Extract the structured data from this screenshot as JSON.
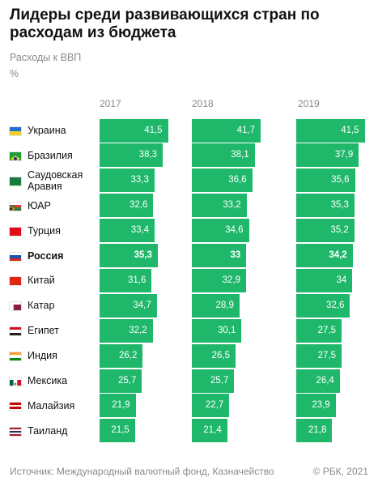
{
  "title": "Лидеры среди развивающихся стран по расходам из бюджета",
  "subtitle": "Расходы к ВВП",
  "unit": "%",
  "footer": {
    "source": "Источник: Международный валютный фонд, Казначейство",
    "copyright": "© РБК, 2021"
  },
  "colors": {
    "bar": "#1fb86a",
    "text_muted": "#8a8a8a"
  },
  "chart_data": {
    "type": "bar",
    "title": "Лидеры среди развивающихся стран по расходам из бюджета",
    "subtitle": "Расходы к ВВП",
    "ylabel": "%",
    "orientation": "horizontal",
    "categories": [
      "Украина",
      "Бразилия",
      "Саудовская Аравия",
      "ЮАР",
      "Турция",
      "Россия",
      "Китай",
      "Катар",
      "Египет",
      "Индия",
      "Мексика",
      "Малайзия",
      "Таиланд"
    ],
    "highlight": "Россия",
    "series": [
      {
        "name": "2017",
        "values": [
          "41,5",
          "38,3",
          "33,3",
          "32,6",
          "33,4",
          "35,3",
          "31,6",
          "34,7",
          "32,2",
          "26,2",
          "25,7",
          "21,9",
          "21,5"
        ]
      },
      {
        "name": "2018",
        "values": [
          "41,7",
          "38,1",
          "36,6",
          "33,2",
          "34,6",
          "33",
          "32,9",
          "28,9",
          "30,1",
          "26,5",
          "25,7",
          "22,7",
          "21,4"
        ]
      },
      {
        "name": "2019",
        "values": [
          "41,5",
          "37,9",
          "35,6",
          "35,3",
          "35,2",
          "34,2",
          "34",
          "32,6",
          "27,5",
          "27,5",
          "26,4",
          "23,9",
          "21,8"
        ]
      }
    ]
  },
  "rows": [
    {
      "name": "Украина",
      "lines": [
        "Украина"
      ],
      "flag": "ukraine-flag-icon",
      "bold": false
    },
    {
      "name": "Бразилия",
      "lines": [
        "Бразилия"
      ],
      "flag": "brazil-flag-icon",
      "bold": false
    },
    {
      "name": "Саудовская Аравия",
      "lines": [
        "Саудовская",
        "Аравия"
      ],
      "flag": "saudi-arabia-flag-icon",
      "bold": false
    },
    {
      "name": "ЮАР",
      "lines": [
        "ЮАР"
      ],
      "flag": "south-africa-flag-icon",
      "bold": false
    },
    {
      "name": "Турция",
      "lines": [
        "Турция"
      ],
      "flag": "turkey-flag-icon",
      "bold": false
    },
    {
      "name": "Россия",
      "lines": [
        "Россия"
      ],
      "flag": "russia-flag-icon",
      "bold": true
    },
    {
      "name": "Китай",
      "lines": [
        "Китай"
      ],
      "flag": "china-flag-icon",
      "bold": false
    },
    {
      "name": "Катар",
      "lines": [
        "Катар"
      ],
      "flag": "qatar-flag-icon",
      "bold": false
    },
    {
      "name": "Египет",
      "lines": [
        "Египет"
      ],
      "flag": "egypt-flag-icon",
      "bold": false
    },
    {
      "name": "Индия",
      "lines": [
        "Индия"
      ],
      "flag": "india-flag-icon",
      "bold": false
    },
    {
      "name": "Мексика",
      "lines": [
        "Мексика"
      ],
      "flag": "mexico-flag-icon",
      "bold": false
    },
    {
      "name": "Малайзия",
      "lines": [
        "Малайзия"
      ],
      "flag": "malaysia-flag-icon",
      "bold": false
    },
    {
      "name": "Таиланд",
      "lines": [
        "Таиланд"
      ],
      "flag": "thailand-flag-icon",
      "bold": false
    }
  ]
}
